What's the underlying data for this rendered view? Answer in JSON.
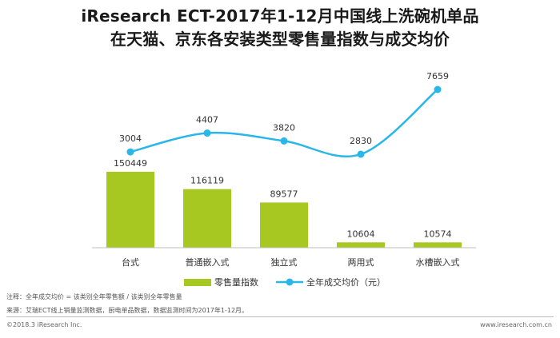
{
  "title": {
    "line1": "iResearch ECT-2017年1-12月中国线上洗碗机单品",
    "line2": "在天猫、京东各安装类型零售量指数与成交均价"
  },
  "chart_data": {
    "type": "bar",
    "categories": [
      "台式",
      "普通嵌入式",
      "独立式",
      "两用式",
      "水槽嵌入式"
    ],
    "series": [
      {
        "name": "零售量指数",
        "type": "bar",
        "color": "#a6c821",
        "values": [
          150449,
          116119,
          89577,
          10604,
          10574
        ]
      },
      {
        "name": "全年成交均价（元）",
        "type": "line",
        "color": "#29b6e8",
        "values": [
          3004,
          4407,
          3820,
          2830,
          7659
        ]
      }
    ],
    "legend_position": "bottom",
    "grid": false
  },
  "notes": {
    "note": "注释：全年成交均价 = 该类别全年零售额 / 该类别全年零售量",
    "source": "来源：艾瑞ECT线上销量监测数据，厨电单品数据，数据监测时间为2017年1-12月。"
  },
  "footer": {
    "left": "©2018.3 iResearch Inc.",
    "right": "www.iresearch.com.cn"
  }
}
